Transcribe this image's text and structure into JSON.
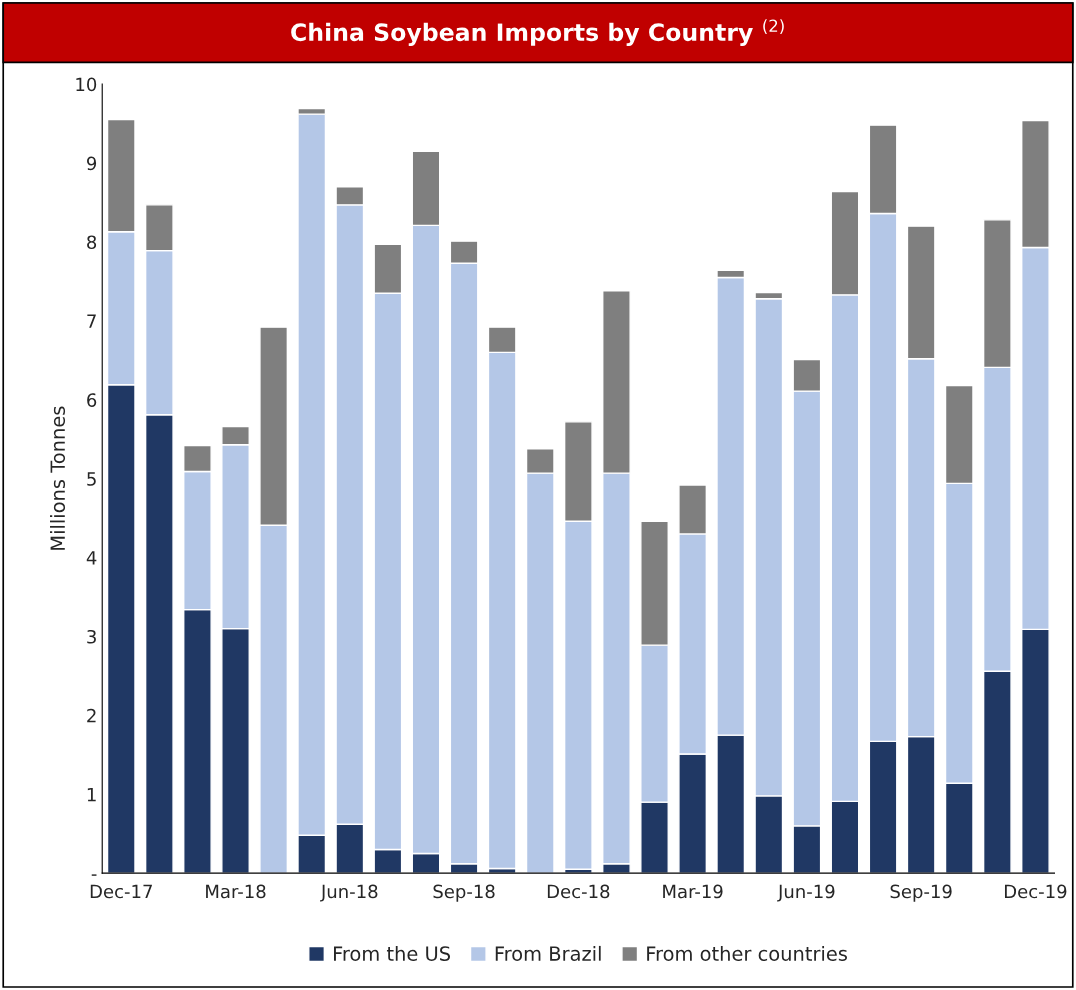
{
  "chart_data": {
    "type": "bar",
    "title": "China Soybean Imports by Country $^{(2)}$",
    "ylabel": "Millions Tonnes",
    "stacked": true,
    "legend": "bottom",
    "grid": false,
    "categories": [
      "Dec-17",
      null,
      null,
      "Mar-18",
      null,
      null,
      "Jun-18",
      null,
      null,
      "Sep-18",
      null,
      null,
      "Dec-18",
      null,
      null,
      "Mar-19",
      null,
      null,
      "Jun-19",
      null,
      null,
      "Sep-19",
      null,
      null,
      "Dec-19"
    ],
    "ylim": [
      0,
      10
    ],
    "yticks": [
      {
        "value": 0,
        "label": "-"
      },
      1,
      2,
      3,
      4,
      5,
      6,
      7,
      8,
      9,
      10
    ],
    "series": [
      {
        "name": "From the US",
        "color": "#203864",
        "values": [
          6.19,
          5.81,
          3.34,
          3.1,
          0,
          0.48,
          0.62,
          0.3,
          0.25,
          0.12,
          0.06,
          0,
          0.05,
          0.12,
          0.9,
          1.51,
          1.75,
          0.98,
          0.6,
          0.91,
          1.67,
          1.73,
          1.14,
          2.56,
          3.09
        ]
      },
      {
        "name": "From Brazil",
        "color": "#b4c7e7",
        "values": [
          1.94,
          2.08,
          1.75,
          2.33,
          4.41,
          9.14,
          7.85,
          7.05,
          7.96,
          7.61,
          6.54,
          5.07,
          4.41,
          4.95,
          1.99,
          2.79,
          5.8,
          6.3,
          5.51,
          6.42,
          6.69,
          4.79,
          3.8,
          3.85,
          4.84
        ]
      },
      {
        "name": "From other countries",
        "color": "#7f7f7f",
        "values": [
          1.42,
          0.58,
          0.33,
          0.23,
          2.51,
          0.07,
          0.23,
          0.62,
          0.94,
          0.28,
          0.32,
          0.31,
          1.26,
          2.31,
          1.57,
          0.62,
          0.09,
          0.08,
          0.4,
          1.31,
          1.12,
          1.68,
          1.24,
          1.87,
          1.61
        ]
      }
    ]
  }
}
